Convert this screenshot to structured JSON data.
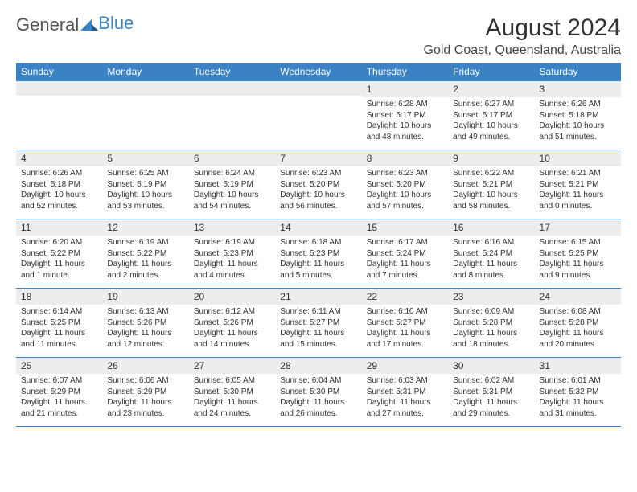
{
  "logo": {
    "part1": "General",
    "part2": "Blue"
  },
  "title": "August 2024",
  "location": "Gold Coast, Queensland, Australia",
  "colors": {
    "header_bg": "#3b82c4",
    "header_text": "#ffffff",
    "daynum_bg": "#ededed",
    "text": "#333333",
    "border": "#3b82c4"
  },
  "daynames": [
    "Sunday",
    "Monday",
    "Tuesday",
    "Wednesday",
    "Thursday",
    "Friday",
    "Saturday"
  ],
  "weeks": [
    [
      null,
      null,
      null,
      null,
      {
        "d": "1",
        "sr": "6:28 AM",
        "ss": "5:17 PM",
        "dl": "10 hours and 48 minutes."
      },
      {
        "d": "2",
        "sr": "6:27 AM",
        "ss": "5:17 PM",
        "dl": "10 hours and 49 minutes."
      },
      {
        "d": "3",
        "sr": "6:26 AM",
        "ss": "5:18 PM",
        "dl": "10 hours and 51 minutes."
      }
    ],
    [
      {
        "d": "4",
        "sr": "6:26 AM",
        "ss": "5:18 PM",
        "dl": "10 hours and 52 minutes."
      },
      {
        "d": "5",
        "sr": "6:25 AM",
        "ss": "5:19 PM",
        "dl": "10 hours and 53 minutes."
      },
      {
        "d": "6",
        "sr": "6:24 AM",
        "ss": "5:19 PM",
        "dl": "10 hours and 54 minutes."
      },
      {
        "d": "7",
        "sr": "6:23 AM",
        "ss": "5:20 PM",
        "dl": "10 hours and 56 minutes."
      },
      {
        "d": "8",
        "sr": "6:23 AM",
        "ss": "5:20 PM",
        "dl": "10 hours and 57 minutes."
      },
      {
        "d": "9",
        "sr": "6:22 AM",
        "ss": "5:21 PM",
        "dl": "10 hours and 58 minutes."
      },
      {
        "d": "10",
        "sr": "6:21 AM",
        "ss": "5:21 PM",
        "dl": "11 hours and 0 minutes."
      }
    ],
    [
      {
        "d": "11",
        "sr": "6:20 AM",
        "ss": "5:22 PM",
        "dl": "11 hours and 1 minute."
      },
      {
        "d": "12",
        "sr": "6:19 AM",
        "ss": "5:22 PM",
        "dl": "11 hours and 2 minutes."
      },
      {
        "d": "13",
        "sr": "6:19 AM",
        "ss": "5:23 PM",
        "dl": "11 hours and 4 minutes."
      },
      {
        "d": "14",
        "sr": "6:18 AM",
        "ss": "5:23 PM",
        "dl": "11 hours and 5 minutes."
      },
      {
        "d": "15",
        "sr": "6:17 AM",
        "ss": "5:24 PM",
        "dl": "11 hours and 7 minutes."
      },
      {
        "d": "16",
        "sr": "6:16 AM",
        "ss": "5:24 PM",
        "dl": "11 hours and 8 minutes."
      },
      {
        "d": "17",
        "sr": "6:15 AM",
        "ss": "5:25 PM",
        "dl": "11 hours and 9 minutes."
      }
    ],
    [
      {
        "d": "18",
        "sr": "6:14 AM",
        "ss": "5:25 PM",
        "dl": "11 hours and 11 minutes."
      },
      {
        "d": "19",
        "sr": "6:13 AM",
        "ss": "5:26 PM",
        "dl": "11 hours and 12 minutes."
      },
      {
        "d": "20",
        "sr": "6:12 AM",
        "ss": "5:26 PM",
        "dl": "11 hours and 14 minutes."
      },
      {
        "d": "21",
        "sr": "6:11 AM",
        "ss": "5:27 PM",
        "dl": "11 hours and 15 minutes."
      },
      {
        "d": "22",
        "sr": "6:10 AM",
        "ss": "5:27 PM",
        "dl": "11 hours and 17 minutes."
      },
      {
        "d": "23",
        "sr": "6:09 AM",
        "ss": "5:28 PM",
        "dl": "11 hours and 18 minutes."
      },
      {
        "d": "24",
        "sr": "6:08 AM",
        "ss": "5:28 PM",
        "dl": "11 hours and 20 minutes."
      }
    ],
    [
      {
        "d": "25",
        "sr": "6:07 AM",
        "ss": "5:29 PM",
        "dl": "11 hours and 21 minutes."
      },
      {
        "d": "26",
        "sr": "6:06 AM",
        "ss": "5:29 PM",
        "dl": "11 hours and 23 minutes."
      },
      {
        "d": "27",
        "sr": "6:05 AM",
        "ss": "5:30 PM",
        "dl": "11 hours and 24 minutes."
      },
      {
        "d": "28",
        "sr": "6:04 AM",
        "ss": "5:30 PM",
        "dl": "11 hours and 26 minutes."
      },
      {
        "d": "29",
        "sr": "6:03 AM",
        "ss": "5:31 PM",
        "dl": "11 hours and 27 minutes."
      },
      {
        "d": "30",
        "sr": "6:02 AM",
        "ss": "5:31 PM",
        "dl": "11 hours and 29 minutes."
      },
      {
        "d": "31",
        "sr": "6:01 AM",
        "ss": "5:32 PM",
        "dl": "11 hours and 31 minutes."
      }
    ]
  ],
  "labels": {
    "sunrise": "Sunrise: ",
    "sunset": "Sunset: ",
    "daylight": "Daylight: "
  }
}
